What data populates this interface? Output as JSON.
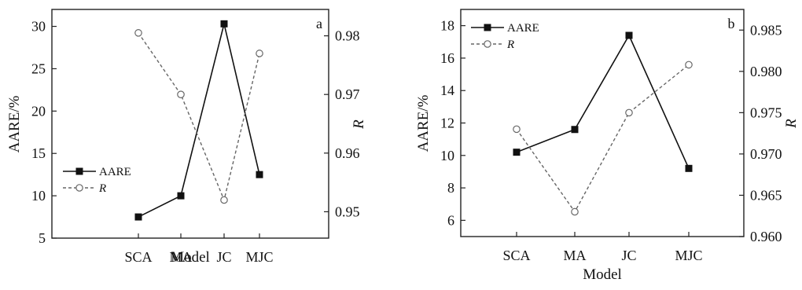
{
  "chart_data": [
    {
      "panel_label": "a",
      "type": "line",
      "categories": [
        "SCA",
        "MA",
        "JC",
        "MJC"
      ],
      "xlabel": "Model",
      "ylabel": "AARE/%",
      "y2label": "R",
      "ylim": [
        5,
        32
      ],
      "yticks": [
        5,
        10,
        15,
        20,
        25,
        30
      ],
      "y2lim": [
        0.9455,
        0.9845
      ],
      "y2ticks": [
        "0.95",
        "0.96",
        "0.97",
        "0.98"
      ],
      "legend_position": "lower-left",
      "series": [
        {
          "name": "AARE",
          "axis": "left",
          "marker": "filled-square",
          "line": "solid",
          "values": [
            7.5,
            10.0,
            30.3,
            12.5
          ]
        },
        {
          "name": "R",
          "axis": "right",
          "marker": "open-circle",
          "line": "dashed",
          "values": [
            0.9805,
            0.97,
            0.952,
            0.977
          ]
        }
      ]
    },
    {
      "panel_label": "b",
      "type": "line",
      "categories": [
        "SCA",
        "MA",
        "JC",
        "MJC"
      ],
      "xlabel": "Model",
      "ylabel": "AARE/%",
      "y2label": "R",
      "ylim": [
        5,
        19
      ],
      "yticks": [
        6,
        8,
        10,
        12,
        14,
        16,
        18
      ],
      "y2lim": [
        0.96,
        0.9875
      ],
      "y2ticks": [
        "0.960",
        "0.965",
        "0.970",
        "0.975",
        "0.980",
        "0.985"
      ],
      "legend_position": "top-left",
      "series": [
        {
          "name": "AARE",
          "axis": "left",
          "marker": "filled-square",
          "line": "solid",
          "values": [
            10.2,
            11.6,
            17.4,
            9.2
          ]
        },
        {
          "name": "R",
          "axis": "right",
          "marker": "open-circle",
          "line": "dashed",
          "values": [
            0.973,
            0.963,
            0.975,
            0.9808
          ]
        }
      ]
    }
  ]
}
